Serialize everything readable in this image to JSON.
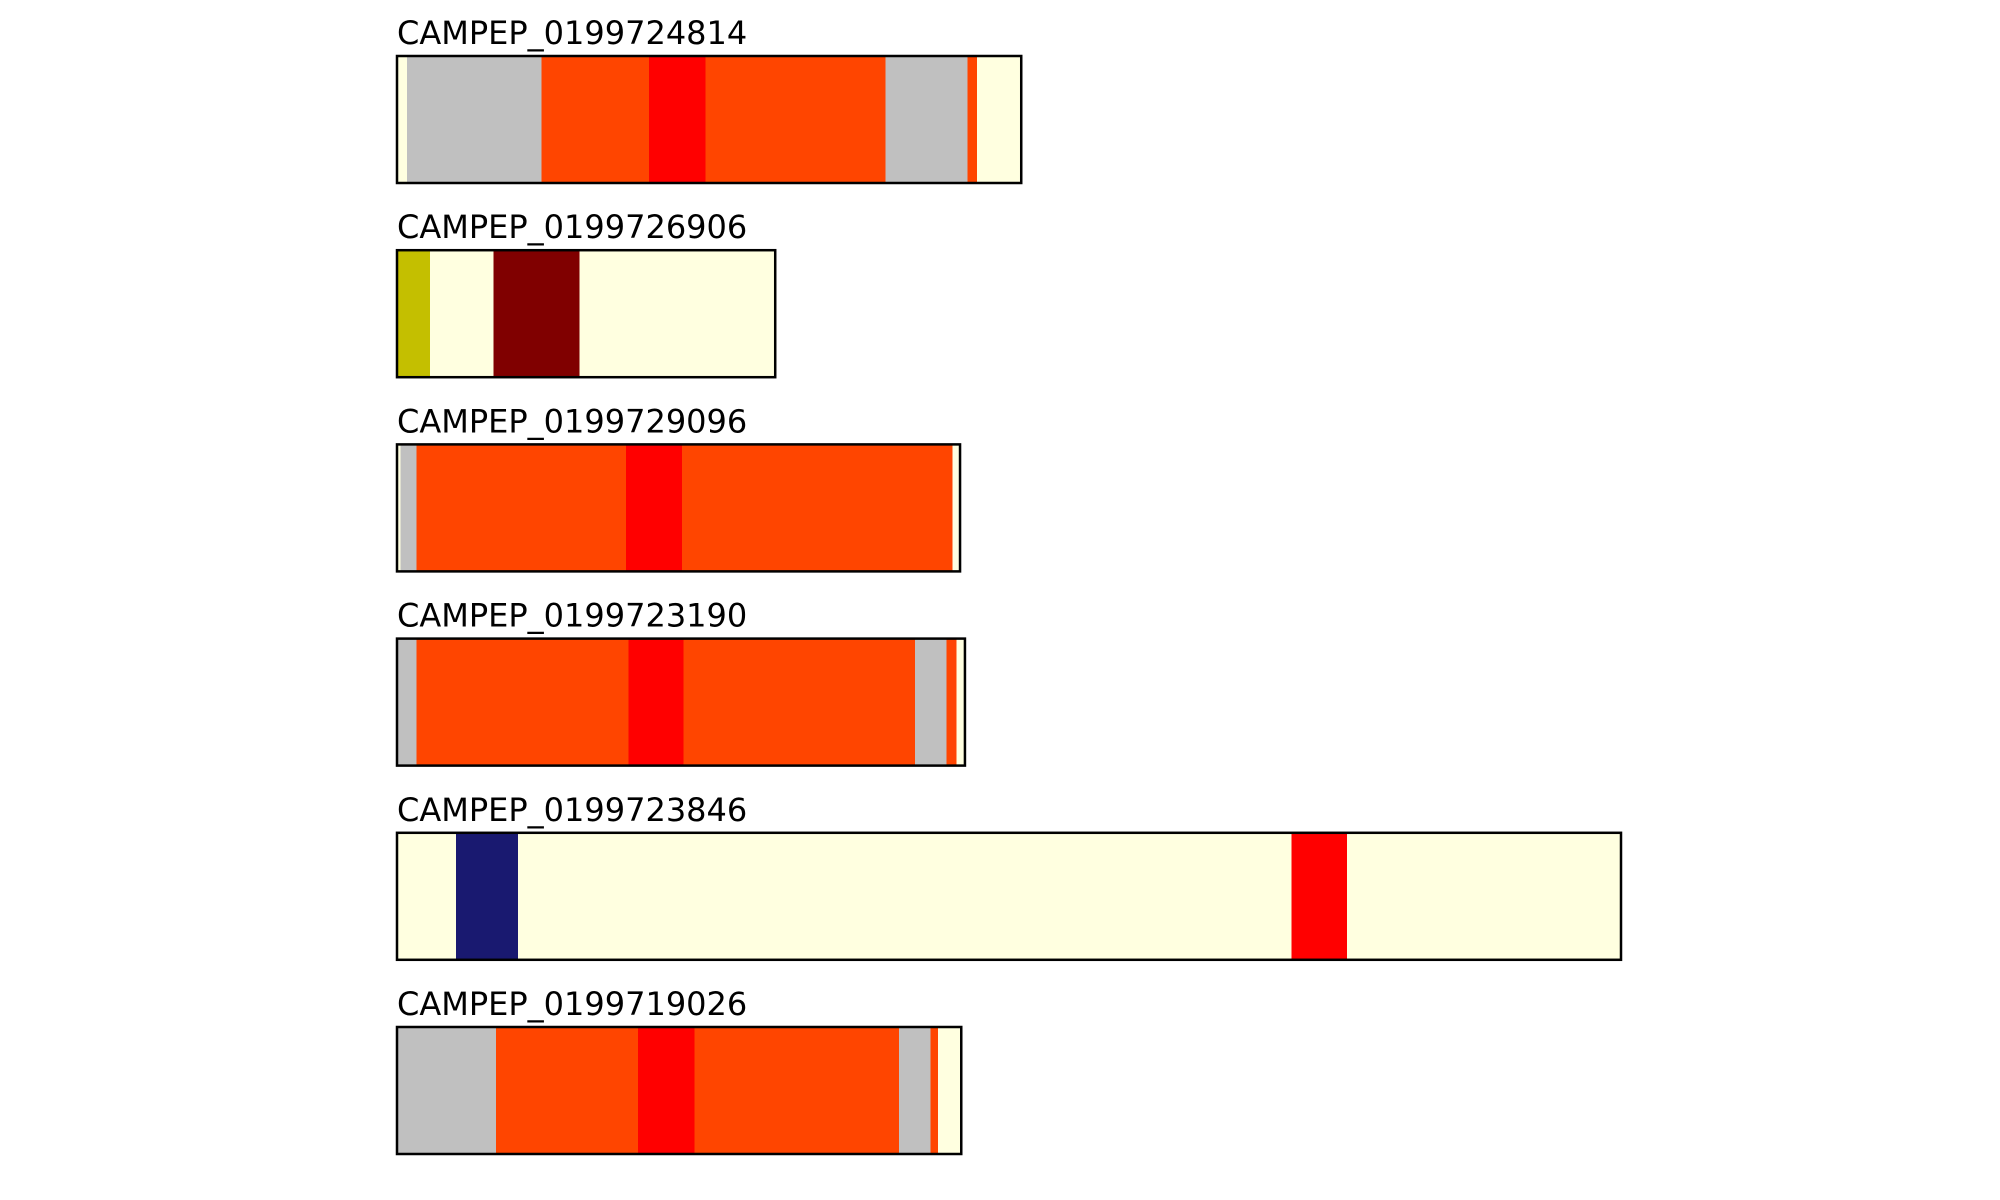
{
  "colors": {
    "grey": "#c0c0c0",
    "orangered": "#ff4500",
    "red": "#ff0000",
    "lightyellow": "#ffffe0",
    "olive": "#c4bf00",
    "maroon": "#800000",
    "navy": "#191970",
    "border": "#000000"
  },
  "tracks": [
    {
      "label": "CAMPEP_0199724814",
      "segments": [
        {
          "color": "lightyellow",
          "from": 0.0,
          "to": 0.008
        },
        {
          "color": "grey",
          "from": 0.008,
          "to": 0.118
        },
        {
          "color": "orangered",
          "from": 0.118,
          "to": 0.206
        },
        {
          "color": "red",
          "from": 0.206,
          "to": 0.252
        },
        {
          "color": "orangered",
          "from": 0.252,
          "to": 0.399
        },
        {
          "color": "grey",
          "from": 0.399,
          "to": 0.466
        },
        {
          "color": "orangered",
          "from": 0.466,
          "to": 0.474
        },
        {
          "color": "lightyellow",
          "from": 0.474,
          "to": 0.51
        }
      ]
    },
    {
      "label": "CAMPEP_0199726906",
      "segments": [
        {
          "color": "olive",
          "from": 0.0,
          "to": 0.027
        },
        {
          "color": "lightyellow",
          "from": 0.027,
          "to": 0.079
        },
        {
          "color": "maroon",
          "from": 0.079,
          "to": 0.149
        },
        {
          "color": "lightyellow",
          "from": 0.149,
          "to": 0.309
        }
      ]
    },
    {
      "label": "CAMPEP_0199729096",
      "segments": [
        {
          "color": "lightyellow",
          "from": 0.0,
          "to": 0.003
        },
        {
          "color": "grey",
          "from": 0.003,
          "to": 0.016
        },
        {
          "color": "orangered",
          "from": 0.016,
          "to": 0.187
        },
        {
          "color": "red",
          "from": 0.187,
          "to": 0.233
        },
        {
          "color": "orangered",
          "from": 0.233,
          "to": 0.454
        },
        {
          "color": "lightyellow",
          "from": 0.454,
          "to": 0.46
        }
      ]
    },
    {
      "label": "CAMPEP_0199723190",
      "segments": [
        {
          "color": "grey",
          "from": 0.0,
          "to": 0.016
        },
        {
          "color": "orangered",
          "from": 0.016,
          "to": 0.189
        },
        {
          "color": "red",
          "from": 0.189,
          "to": 0.234
        },
        {
          "color": "orangered",
          "from": 0.234,
          "to": 0.423
        },
        {
          "color": "grey",
          "from": 0.423,
          "to": 0.449
        },
        {
          "color": "orangered",
          "from": 0.449,
          "to": 0.457
        },
        {
          "color": "lightyellow",
          "from": 0.457,
          "to": 0.464
        }
      ]
    },
    {
      "label": "CAMPEP_0199723846",
      "segments": [
        {
          "color": "lightyellow",
          "from": 0.0,
          "to": 0.048
        },
        {
          "color": "navy",
          "from": 0.048,
          "to": 0.099
        },
        {
          "color": "lightyellow",
          "from": 0.099,
          "to": 0.731
        },
        {
          "color": "red",
          "from": 0.731,
          "to": 0.776
        },
        {
          "color": "lightyellow",
          "from": 0.776,
          "to": 1.0
        }
      ]
    },
    {
      "label": "CAMPEP_0199719026",
      "segments": [
        {
          "color": "grey",
          "from": 0.0,
          "to": 0.081
        },
        {
          "color": "orangered",
          "from": 0.081,
          "to": 0.197
        },
        {
          "color": "red",
          "from": 0.197,
          "to": 0.243
        },
        {
          "color": "orangered",
          "from": 0.243,
          "to": 0.41
        },
        {
          "color": "grey",
          "from": 0.41,
          "to": 0.436
        },
        {
          "color": "orangered",
          "from": 0.436,
          "to": 0.442
        },
        {
          "color": "lightyellow",
          "from": 0.442,
          "to": 0.461
        }
      ]
    }
  ]
}
